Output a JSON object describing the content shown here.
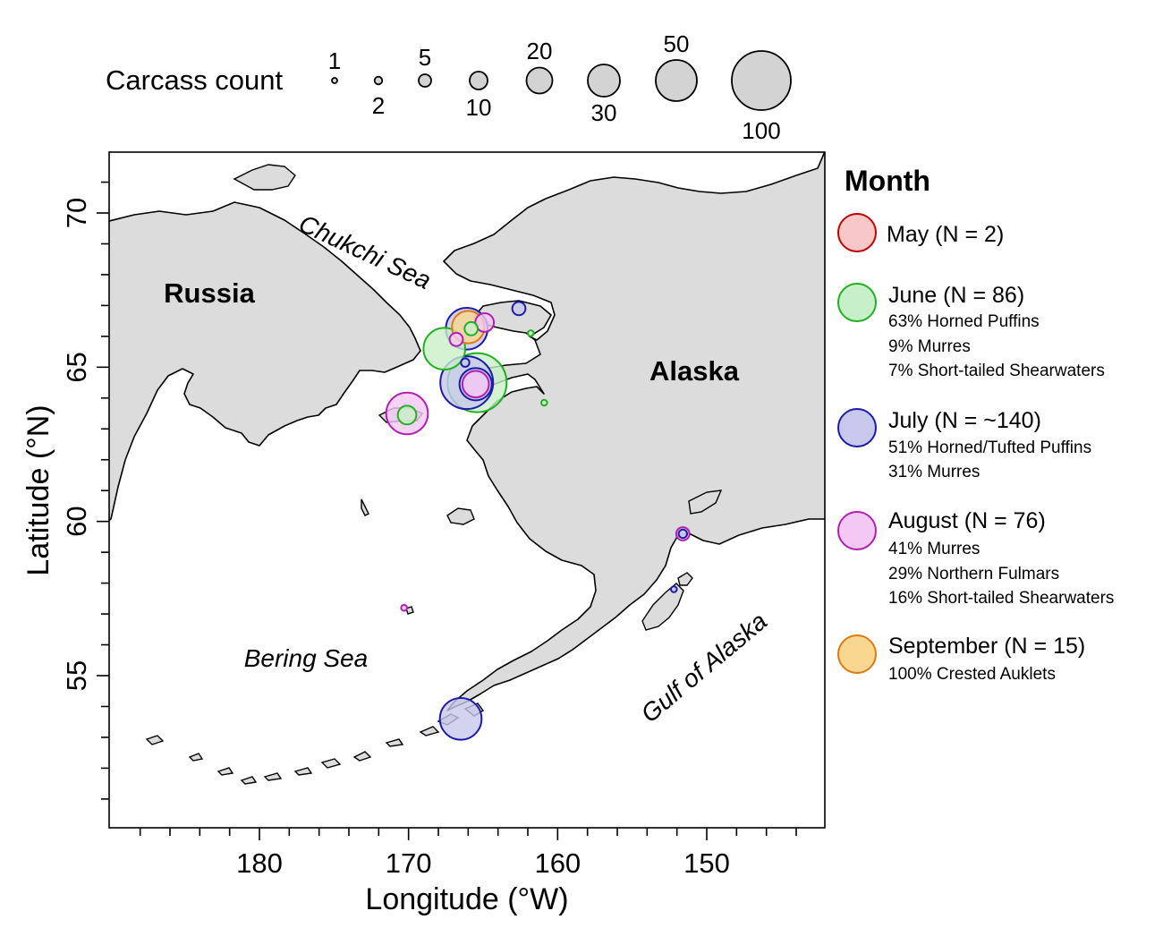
{
  "size_legend": {
    "title": "Carcass count",
    "items": [
      {
        "count": 1,
        "label": "1"
      },
      {
        "count": 2,
        "label": "2"
      },
      {
        "count": 5,
        "label": "5"
      },
      {
        "count": 10,
        "label": "10"
      },
      {
        "count": 20,
        "label": "20"
      },
      {
        "count": 30,
        "label": "30"
      },
      {
        "count": 50,
        "label": "50"
      },
      {
        "count": 100,
        "label": "100"
      }
    ]
  },
  "map": {
    "region_labels": {
      "russia": "Russia",
      "alaska": "Alaska",
      "chukchi": "Chukchi Sea",
      "bering": "Bering Sea",
      "gulf": "Gulf of Alaska"
    },
    "land_color": "#dcdcdc",
    "x_axis": {
      "label": "Longitude (°W)",
      "ticks": [
        {
          "value": 180,
          "label": "180"
        },
        {
          "value": 170,
          "label": "170"
        },
        {
          "value": 160,
          "label": "160"
        },
        {
          "value": 150,
          "label": "150"
        }
      ],
      "range": [
        191,
        143.3
      ]
    },
    "y_axis": {
      "label": "Latitude (°N)",
      "ticks": [
        {
          "value": 55,
          "label": "55"
        },
        {
          "value": 60,
          "label": "60"
        },
        {
          "value": 65,
          "label": "65"
        },
        {
          "value": 70,
          "label": "70"
        }
      ],
      "range": [
        50,
        72
      ]
    }
  },
  "legend": {
    "title": "Month",
    "entries": [
      {
        "key": "may",
        "label": "May (N = 2)",
        "fill": "#f8c8c8",
        "stroke": "#c00000",
        "details": []
      },
      {
        "key": "june",
        "label": "June (N = 86)",
        "fill": "#c8f0c8",
        "stroke": "#20b020",
        "details": [
          "63% Horned Puffins",
          "9% Murres",
          "7% Short-tailed Shearwaters"
        ]
      },
      {
        "key": "july",
        "label": "July (N = ~140)",
        "fill": "#c8c8ec",
        "stroke": "#1c1ca8",
        "details": [
          "51% Horned/Tufted Puffins",
          "31% Murres"
        ]
      },
      {
        "key": "august",
        "label": "August (N = 76)",
        "fill": "#f4c8f4",
        "stroke": "#b020b0",
        "details": [
          "41% Murres",
          "29% Northern Fulmars",
          "16% Short-tailed Shearwaters"
        ]
      },
      {
        "key": "september",
        "label": "September (N = 15)",
        "fill": "#f8d890",
        "stroke": "#e07810",
        "details": [
          "100% Crested Auklets"
        ]
      }
    ]
  },
  "observations": [
    {
      "month": "july",
      "lon": 166.1,
      "lat": 66.25,
      "count": 50
    },
    {
      "month": "september",
      "lon": 166.0,
      "lat": 66.3,
      "count": 30
    },
    {
      "month": "june",
      "lon": 165.8,
      "lat": 66.25,
      "count": 5
    },
    {
      "month": "august",
      "lon": 164.9,
      "lat": 66.45,
      "count": 10
    },
    {
      "month": "august",
      "lon": 166.8,
      "lat": 65.9,
      "count": 5
    },
    {
      "month": "july",
      "lon": 162.6,
      "lat": 66.9,
      "count": 5
    },
    {
      "month": "june",
      "lon": 161.8,
      "lat": 66.1,
      "count": 1
    },
    {
      "month": "june",
      "lon": 167.6,
      "lat": 65.6,
      "count": 50
    },
    {
      "month": "july",
      "lon": 166.2,
      "lat": 65.15,
      "count": 2
    },
    {
      "month": "june",
      "lon": 165.4,
      "lat": 64.5,
      "count": 100
    },
    {
      "month": "july",
      "lon": 166.1,
      "lat": 64.5,
      "count": 80
    },
    {
      "month": "july",
      "lon": 165.5,
      "lat": 64.45,
      "count": 30
    },
    {
      "month": "august",
      "lon": 165.5,
      "lat": 64.45,
      "count": 20
    },
    {
      "month": "june",
      "lon": 160.9,
      "lat": 63.85,
      "count": 1
    },
    {
      "month": "august",
      "lon": 170.1,
      "lat": 63.5,
      "count": 50
    },
    {
      "month": "june",
      "lon": 170.1,
      "lat": 63.45,
      "count": 10
    },
    {
      "month": "august",
      "lon": 151.6,
      "lat": 59.6,
      "count": 5
    },
    {
      "month": "july",
      "lon": 151.6,
      "lat": 59.6,
      "count": 2
    },
    {
      "month": "july",
      "lon": 152.2,
      "lat": 57.8,
      "count": 1
    },
    {
      "month": "august",
      "lon": 170.3,
      "lat": 57.2,
      "count": 1
    },
    {
      "month": "july",
      "lon": 166.5,
      "lat": 53.6,
      "count": 50
    }
  ]
}
